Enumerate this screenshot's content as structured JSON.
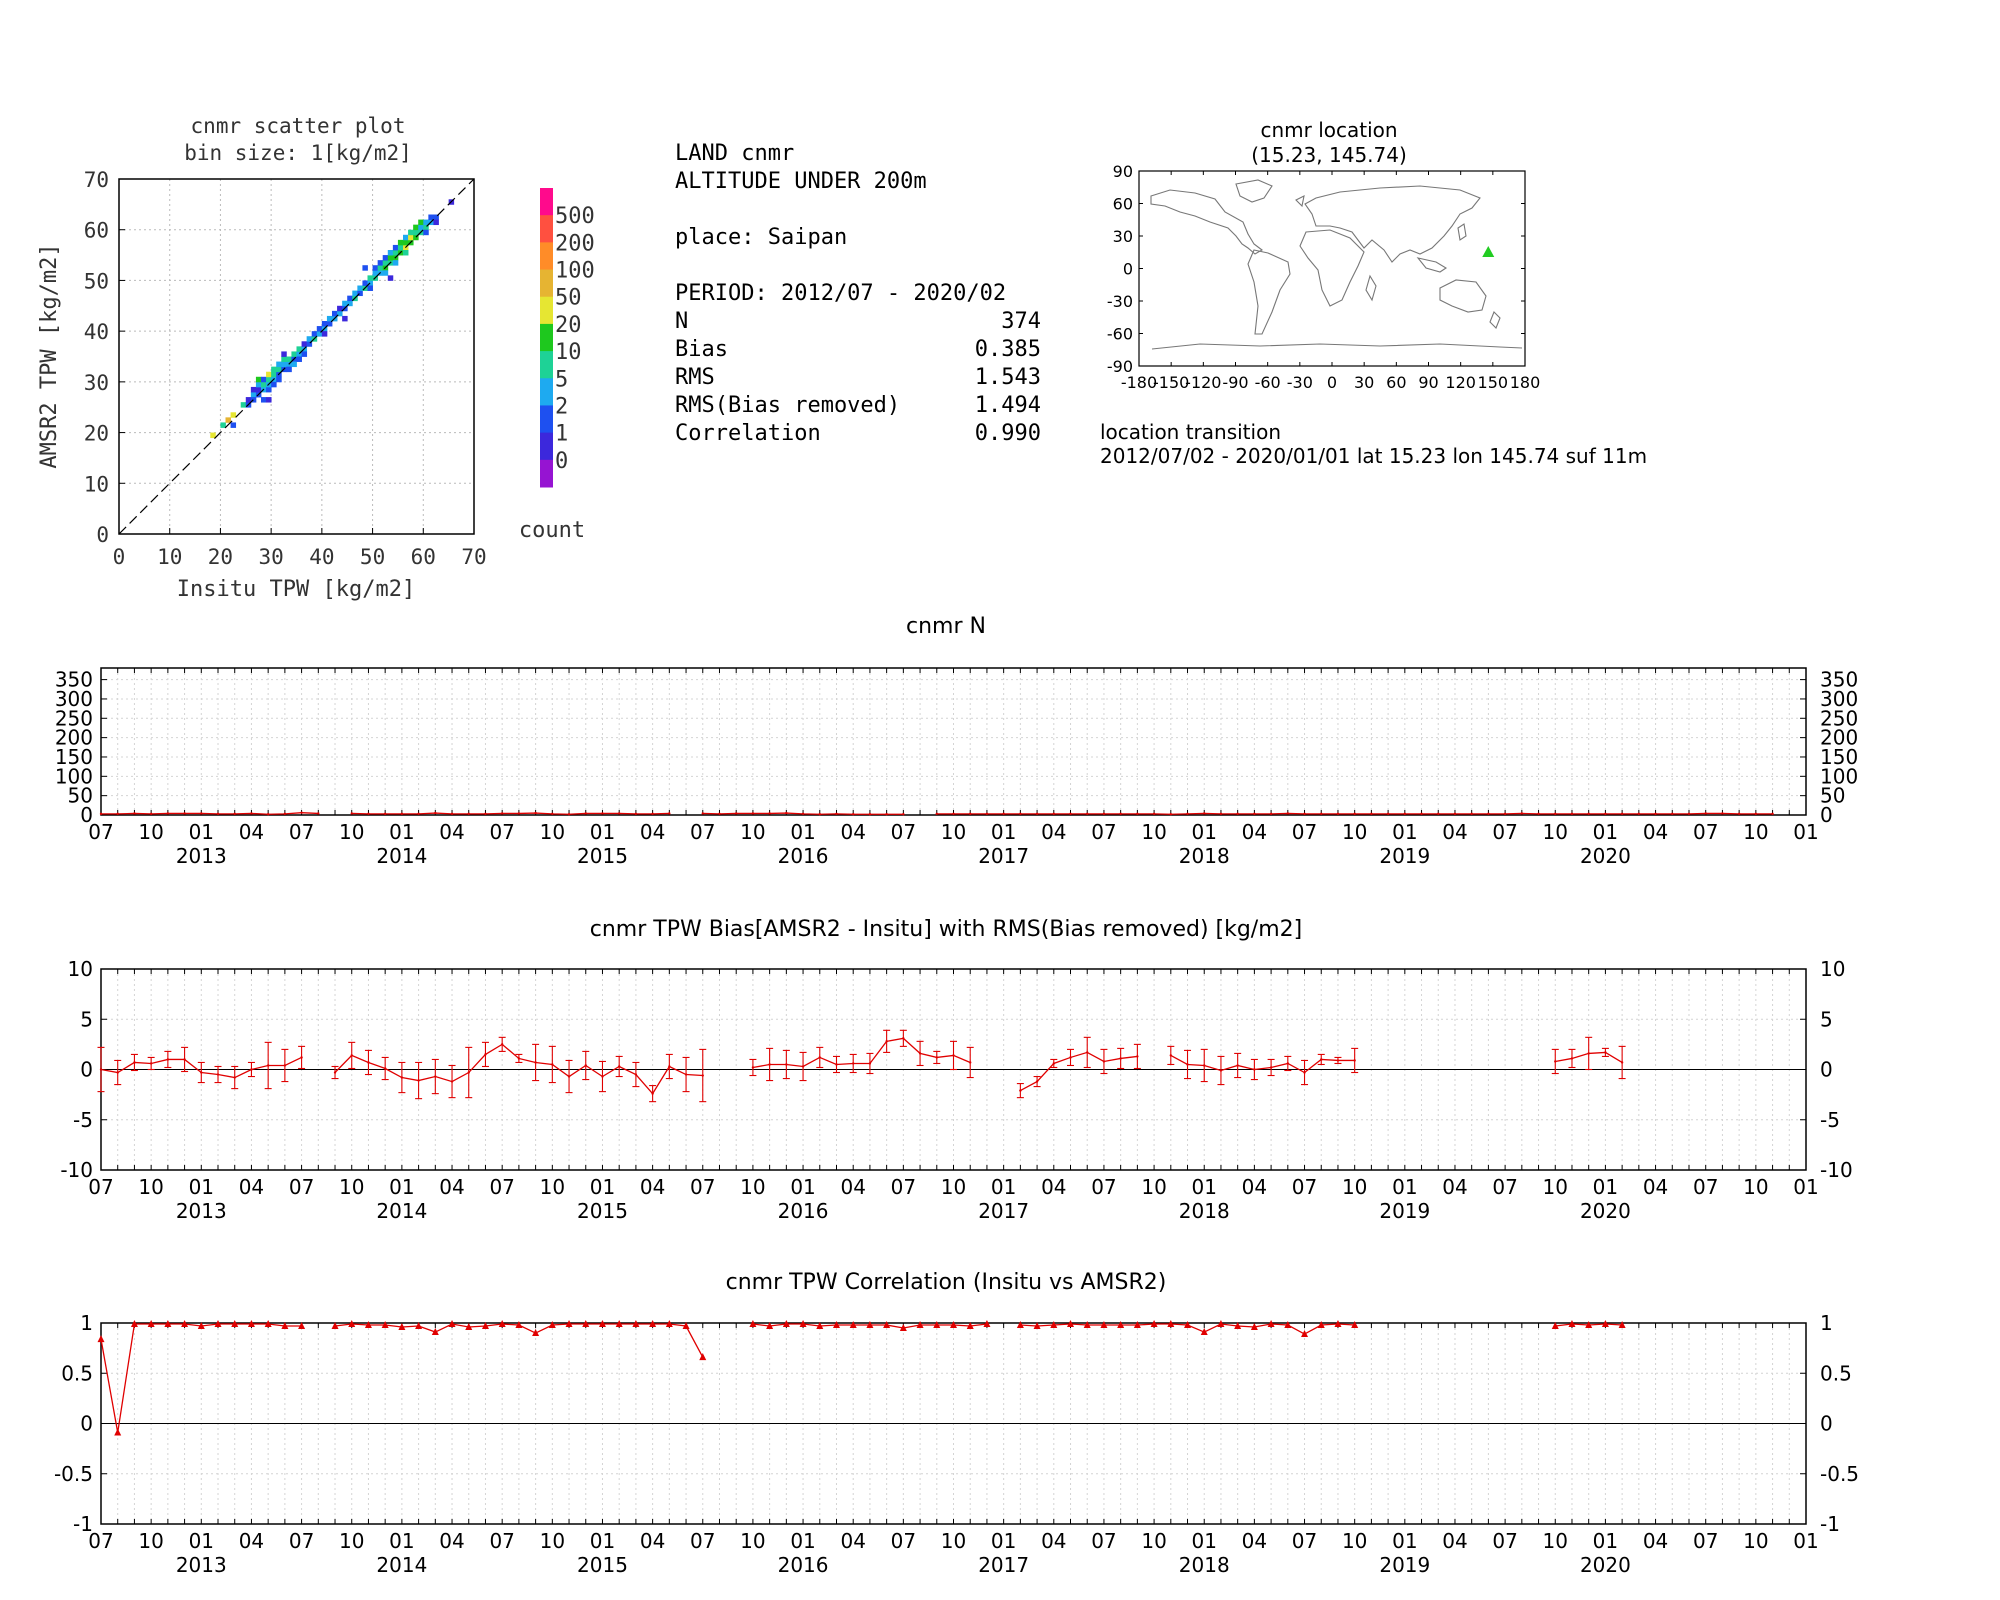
{
  "scatter": {
    "title_line1": "cnmr scatter plot",
    "title_line2": "bin size: 1[kg/m2]",
    "xlabel": "Insitu TPW [kg/m2]",
    "ylabel": "AMSR2 TPW [kg/m2]",
    "ticks": [
      "0",
      "10",
      "20",
      "30",
      "40",
      "50",
      "60",
      "70"
    ],
    "colorbar": {
      "labels": [
        "500",
        "200",
        "100",
        "50",
        "20",
        "10",
        "5",
        "2",
        "1",
        "0"
      ],
      "colors": [
        "#ff0a8c",
        "#ff5040",
        "#ff8c28",
        "#e6b432",
        "#e6e632",
        "#1ec81e",
        "#1ed296",
        "#1eaaf0",
        "#1e50f0",
        "#3c28dc",
        "#9614d2"
      ],
      "title": "count"
    },
    "bins": [
      [
        18,
        19,
        4
      ],
      [
        20,
        21,
        6
      ],
      [
        21,
        22,
        3
      ],
      [
        22,
        23,
        4
      ],
      [
        22,
        21,
        8
      ],
      [
        24,
        25,
        6
      ],
      [
        25,
        25,
        8
      ],
      [
        25,
        26,
        9
      ],
      [
        26,
        27,
        7
      ],
      [
        26,
        26,
        8
      ],
      [
        26,
        28,
        9
      ],
      [
        27,
        27,
        8
      ],
      [
        27,
        28,
        9
      ],
      [
        27,
        29,
        7
      ],
      [
        27,
        30,
        5
      ],
      [
        28,
        26,
        8
      ],
      [
        28,
        28,
        7
      ],
      [
        28,
        29,
        6
      ],
      [
        28,
        30,
        8
      ],
      [
        29,
        28,
        8
      ],
      [
        29,
        29,
        7
      ],
      [
        29,
        30,
        6
      ],
      [
        29,
        31,
        4
      ],
      [
        29,
        26,
        9
      ],
      [
        30,
        30,
        7
      ],
      [
        30,
        31,
        6
      ],
      [
        30,
        29,
        8
      ],
      [
        30,
        32,
        6
      ],
      [
        31,
        31,
        8
      ],
      [
        31,
        32,
        6
      ],
      [
        31,
        33,
        7
      ],
      [
        31,
        30,
        8
      ],
      [
        32,
        32,
        8
      ],
      [
        32,
        33,
        7
      ],
      [
        32,
        34,
        6
      ],
      [
        32,
        35,
        9
      ],
      [
        33,
        33,
        7
      ],
      [
        33,
        34,
        6
      ],
      [
        33,
        32,
        8
      ],
      [
        34,
        34,
        8
      ],
      [
        34,
        35,
        6
      ],
      [
        34,
        33,
        7
      ],
      [
        35,
        35,
        7
      ],
      [
        35,
        36,
        6
      ],
      [
        35,
        34,
        8
      ],
      [
        36,
        36,
        7
      ],
      [
        36,
        35,
        8
      ],
      [
        36,
        37,
        9
      ],
      [
        37,
        37,
        8
      ],
      [
        37,
        38,
        7
      ],
      [
        38,
        38,
        6
      ],
      [
        38,
        39,
        8
      ],
      [
        39,
        39,
        7
      ],
      [
        39,
        40,
        8
      ],
      [
        40,
        40,
        7
      ],
      [
        40,
        39,
        9
      ],
      [
        40,
        41,
        8
      ],
      [
        41,
        41,
        8
      ],
      [
        41,
        42,
        7
      ],
      [
        42,
        42,
        7
      ],
      [
        42,
        43,
        8
      ],
      [
        43,
        43,
        7
      ],
      [
        43,
        44,
        9
      ],
      [
        44,
        44,
        8
      ],
      [
        44,
        45,
        7
      ],
      [
        45,
        45,
        7
      ],
      [
        45,
        46,
        8
      ],
      [
        46,
        46,
        6
      ],
      [
        46,
        47,
        7
      ],
      [
        47,
        47,
        8
      ],
      [
        47,
        48,
        7
      ],
      [
        48,
        48,
        6
      ],
      [
        48,
        49,
        8
      ],
      [
        48,
        52,
        8
      ],
      [
        49,
        49,
        7
      ],
      [
        49,
        50,
        6
      ],
      [
        49,
        48,
        8
      ],
      [
        50,
        50,
        6
      ],
      [
        50,
        51,
        7
      ],
      [
        50,
        52,
        8
      ],
      [
        51,
        51,
        7
      ],
      [
        51,
        52,
        6
      ],
      [
        51,
        53,
        8
      ],
      [
        52,
        52,
        5
      ],
      [
        52,
        53,
        6
      ],
      [
        52,
        51,
        7
      ],
      [
        52,
        54,
        8
      ],
      [
        53,
        53,
        6
      ],
      [
        53,
        54,
        5
      ],
      [
        53,
        55,
        7
      ],
      [
        54,
        54,
        5
      ],
      [
        54,
        55,
        6
      ],
      [
        54,
        53,
        7
      ],
      [
        54,
        56,
        8
      ],
      [
        55,
        55,
        5
      ],
      [
        55,
        56,
        6
      ],
      [
        55,
        57,
        5
      ],
      [
        56,
        56,
        4
      ],
      [
        56,
        57,
        5
      ],
      [
        56,
        55,
        6
      ],
      [
        56,
        58,
        7
      ],
      [
        57,
        57,
        5
      ],
      [
        57,
        58,
        4
      ],
      [
        57,
        59,
        6
      ],
      [
        58,
        58,
        5
      ],
      [
        58,
        59,
        6
      ],
      [
        58,
        60,
        5
      ],
      [
        59,
        59,
        6
      ],
      [
        59,
        60,
        7
      ],
      [
        59,
        61,
        5
      ],
      [
        60,
        60,
        6
      ],
      [
        60,
        61,
        7
      ],
      [
        60,
        59,
        8
      ],
      [
        61,
        61,
        7
      ],
      [
        61,
        62,
        8
      ],
      [
        62,
        62,
        8
      ],
      [
        62,
        61,
        9
      ],
      [
        65,
        65,
        9
      ],
      [
        53,
        50,
        9
      ],
      [
        44,
        42,
        9
      ]
    ]
  },
  "stats": {
    "line1": "LAND cnmr",
    "line2": "ALTITUDE UNDER 200m",
    "place": "place: Saipan",
    "period": "PERIOD: 2012/07 - 2020/02",
    "rows": [
      {
        "label": "N",
        "value": "374"
      },
      {
        "label": "Bias",
        "value": "0.385"
      },
      {
        "label": "RMS",
        "value": "1.543"
      },
      {
        "label": "RMS(Bias removed)",
        "value": "1.494"
      },
      {
        "label": "Correlation",
        "value": "0.990"
      }
    ]
  },
  "map": {
    "title_line1": "cnmr location",
    "title_line2": "(15.23, 145.74)",
    "xticks": [
      "-180",
      "-150",
      "-120",
      "-90",
      "-60",
      "-30",
      "0",
      "30",
      "60",
      "90",
      "120",
      "150",
      "180"
    ],
    "yticks": [
      "90",
      "60",
      "30",
      "0",
      "-30",
      "-60",
      "-90"
    ],
    "marker": {
      "lat": 15.23,
      "lon": 145.74,
      "color": "#22cc22"
    },
    "transition_title": "location transition",
    "transition_text": "2012/07/02 - 2020/01/01 lat 15.23 lon 145.74 suf 11m"
  },
  "timeaxis": {
    "month_labels": [
      "07",
      "10",
      "01",
      "04",
      "07",
      "10",
      "01",
      "04",
      "07",
      "10",
      "01",
      "04",
      "07",
      "10",
      "01",
      "04",
      "07",
      "10",
      "01",
      "04",
      "07",
      "10",
      "01",
      "04",
      "07",
      "10",
      "01",
      "04",
      "07",
      "10",
      "01",
      "04",
      "07",
      "10",
      "01"
    ],
    "years": [
      "2013",
      "2014",
      "2015",
      "2016",
      "2017",
      "2018",
      "2019",
      "2020"
    ]
  },
  "chart_data": [
    {
      "type": "line",
      "title": "cnmr N",
      "ylim": [
        0,
        380
      ],
      "yticks": [
        "0",
        "50",
        "100",
        "150",
        "200",
        "250",
        "300",
        "350"
      ],
      "x_start": "2012-07",
      "series": [
        {
          "values": [
            3,
            3,
            4,
            3,
            4,
            4,
            4,
            3,
            3,
            4,
            2,
            3,
            6,
            4,
            null,
            4,
            3,
            3,
            3,
            3,
            5,
            3,
            3,
            3,
            4,
            4,
            5,
            3,
            2,
            4,
            4,
            4,
            3,
            3,
            4,
            null,
            4,
            3,
            4,
            4,
            4,
            5,
            3,
            2,
            3,
            2,
            2,
            2,
            2,
            null,
            3,
            3,
            3,
            3,
            3,
            3,
            3,
            3,
            3,
            3,
            3,
            3,
            3,
            3,
            2,
            3,
            4,
            3,
            3,
            3,
            3,
            4,
            3,
            3,
            3,
            3,
            3,
            3,
            3,
            3,
            3,
            3,
            3,
            3,
            3,
            4,
            3,
            3,
            3,
            3,
            3,
            3,
            3,
            3,
            3,
            3,
            4,
            4,
            3,
            3,
            3
          ]
        }
      ]
    },
    {
      "type": "line",
      "title": "cnmr TPW Bias[AMSR2 - Insitu] with RMS(Bias removed) [kg/m2]",
      "ylim": [
        -10,
        10
      ],
      "yticks": [
        "10",
        "5",
        "0",
        "-5",
        "-10"
      ],
      "x_start": "2012-07",
      "series": [
        {
          "values": [
            0.0,
            -0.3,
            0.7,
            0.6,
            1.0,
            1.0,
            -0.3,
            -0.5,
            -0.8,
            0.0,
            0.4,
            0.4,
            1.2,
            null,
            -0.3,
            1.4,
            0.7,
            0.1,
            -0.8,
            -1.1,
            -0.7,
            -1.2,
            -0.3,
            1.5,
            2.5,
            1.1,
            0.7,
            0.5,
            -0.7,
            0.4,
            -0.7,
            0.3,
            -0.5,
            -2.4,
            0.3,
            -0.5,
            -0.6,
            null,
            null,
            0.2,
            0.5,
            0.5,
            0.3,
            1.2,
            0.5,
            0.6,
            0.6,
            2.8,
            3.1,
            1.6,
            1.2,
            1.4,
            0.7,
            null,
            null,
            -2.1,
            -1.2,
            0.6,
            1.2,
            1.7,
            0.8,
            1.1,
            1.3,
            null,
            1.4,
            0.5,
            0.4,
            -0.1,
            0.4,
            0.0,
            0.2,
            0.6,
            -0.3,
            1.0,
            0.9,
            0.9,
            null,
            null,
            null,
            null,
            null,
            null,
            null,
            null,
            null,
            null,
            null,
            0.8,
            1.1,
            1.6,
            1.7,
            0.7
          ]
        }
      ],
      "errors": [
        2.2,
        1.2,
        0.8,
        0.6,
        0.8,
        1.2,
        1.0,
        0.8,
        1.1,
        0.7,
        2.3,
        1.6,
        1.1,
        null,
        0.6,
        1.3,
        1.2,
        1.1,
        1.5,
        1.8,
        1.7,
        1.6,
        2.5,
        1.2,
        0.7,
        0.4,
        1.8,
        1.8,
        1.6,
        1.4,
        1.5,
        1.0,
        1.2,
        0.8,
        1.2,
        1.7,
        2.6,
        null,
        null,
        0.8,
        1.6,
        1.4,
        1.4,
        1.0,
        0.8,
        0.9,
        1.0,
        1.1,
        0.8,
        1.2,
        0.6,
        1.4,
        1.5,
        null,
        null,
        0.7,
        0.5,
        0.4,
        0.8,
        1.5,
        1.2,
        1.0,
        1.2,
        null,
        0.9,
        1.4,
        1.6,
        1.4,
        1.2,
        1.0,
        0.8,
        0.7,
        1.2,
        0.5,
        0.3,
        1.2,
        null,
        null,
        null,
        null,
        null,
        null,
        null,
        null,
        null,
        null,
        null,
        1.2,
        0.9,
        1.6,
        0.4,
        1.6
      ]
    },
    {
      "type": "line",
      "title": "cnmr TPW Correlation (Insitu vs AMSR2)",
      "ylim": [
        -1,
        1
      ],
      "yticks": [
        "1",
        "0.5",
        "0",
        "-0.5",
        "-1"
      ],
      "x_start": "2012-07",
      "series": [
        {
          "values": [
            0.84,
            -0.09,
            0.99,
            0.99,
            0.99,
            0.99,
            0.97,
            0.99,
            0.99,
            0.99,
            0.99,
            0.97,
            0.97,
            null,
            0.97,
            0.99,
            0.98,
            0.98,
            0.96,
            0.97,
            0.91,
            0.99,
            0.96,
            0.97,
            0.99,
            0.98,
            0.9,
            0.98,
            0.99,
            0.99,
            0.99,
            0.99,
            0.99,
            0.99,
            0.99,
            0.97,
            0.66,
            null,
            null,
            0.99,
            0.97,
            0.99,
            0.99,
            0.97,
            0.98,
            0.98,
            0.98,
            0.98,
            0.95,
            0.98,
            0.98,
            0.98,
            0.97,
            0.99,
            null,
            0.98,
            0.97,
            0.98,
            0.99,
            0.98,
            0.98,
            0.98,
            0.98,
            0.99,
            0.99,
            0.98,
            0.91,
            0.99,
            0.97,
            0.96,
            0.99,
            0.98,
            0.89,
            0.98,
            0.99,
            0.98,
            null,
            null,
            null,
            null,
            null,
            null,
            null,
            null,
            null,
            null,
            null,
            0.97,
            0.99,
            0.98,
            0.99,
            0.98
          ]
        }
      ]
    }
  ]
}
